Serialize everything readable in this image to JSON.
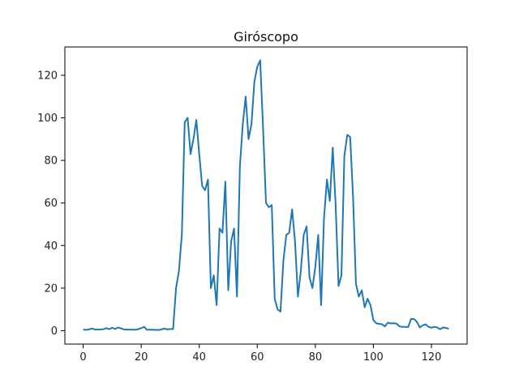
{
  "chart_data": {
    "type": "line",
    "title": "Giróscopo",
    "xlabel": "",
    "ylabel": "",
    "xlim": [
      -6.3,
      132.3
    ],
    "ylim": [
      -6.3,
      133.3
    ],
    "grid": false,
    "legend": "none",
    "x_ticks": [
      0,
      20,
      40,
      60,
      80,
      100,
      120
    ],
    "y_ticks": [
      0,
      20,
      40,
      60,
      80,
      100,
      120
    ],
    "series": [
      {
        "color": "#1f77b4",
        "x": [
          0,
          1,
          2,
          3,
          4,
          5,
          6,
          7,
          8,
          9,
          10,
          11,
          12,
          13,
          14,
          15,
          16,
          17,
          18,
          19,
          20,
          21,
          22,
          23,
          24,
          25,
          26,
          27,
          28,
          29,
          30,
          31,
          32,
          33,
          34,
          35,
          36,
          37,
          38,
          39,
          40,
          41,
          42,
          43,
          44,
          45,
          46,
          47,
          48,
          49,
          50,
          51,
          52,
          53,
          54,
          55,
          56,
          57,
          58,
          59,
          60,
          61,
          62,
          63,
          64,
          65,
          66,
          67,
          68,
          69,
          70,
          71,
          72,
          73,
          74,
          75,
          76,
          77,
          78,
          79,
          80,
          81,
          82,
          83,
          84,
          85,
          86,
          87,
          88,
          89,
          90,
          91,
          92,
          93,
          94,
          95,
          96,
          97,
          98,
          99,
          100,
          101,
          102,
          103,
          104,
          105,
          106,
          107,
          108,
          109,
          110,
          111,
          112,
          113,
          114,
          115,
          116,
          117,
          118,
          119,
          120,
          121,
          122,
          123,
          124,
          125,
          126
        ],
        "values": [
          0.5,
          0.4,
          0.6,
          1.0,
          0.6,
          0.5,
          0.6,
          0.7,
          1.2,
          0.7,
          1.4,
          0.8,
          1.5,
          1.1,
          0.6,
          0.5,
          0.5,
          0.5,
          0.4,
          0.7,
          1.2,
          1.8,
          0.4,
          0.5,
          0.4,
          0.4,
          0.3,
          0.6,
          1.0,
          0.6,
          0.8,
          0.8,
          20,
          28,
          45,
          98,
          100,
          83,
          90,
          99,
          83,
          68,
          66,
          71,
          20,
          26,
          12,
          48,
          46,
          70,
          19,
          42,
          48,
          16,
          77,
          97,
          110,
          90,
          97,
          117,
          124,
          127,
          95,
          60,
          58,
          59,
          15,
          10,
          9,
          33,
          45,
          46,
          57,
          42,
          16,
          28,
          45,
          49,
          25,
          20,
          30,
          45,
          12,
          53,
          71,
          61,
          86,
          59,
          21,
          26,
          82,
          92,
          91,
          63,
          22,
          16,
          19,
          11,
          15,
          12,
          5,
          3.5,
          3.2,
          3.0,
          2.0,
          3.8,
          3.4,
          3.5,
          3.3,
          2.0,
          1.8,
          1.8,
          1.7,
          5.5,
          5.5,
          4.2,
          1.5,
          2.5,
          3.0,
          1.8,
          1.4,
          1.8,
          1.5,
          0.7,
          1.5,
          1.3,
          0.9
        ]
      }
    ]
  }
}
